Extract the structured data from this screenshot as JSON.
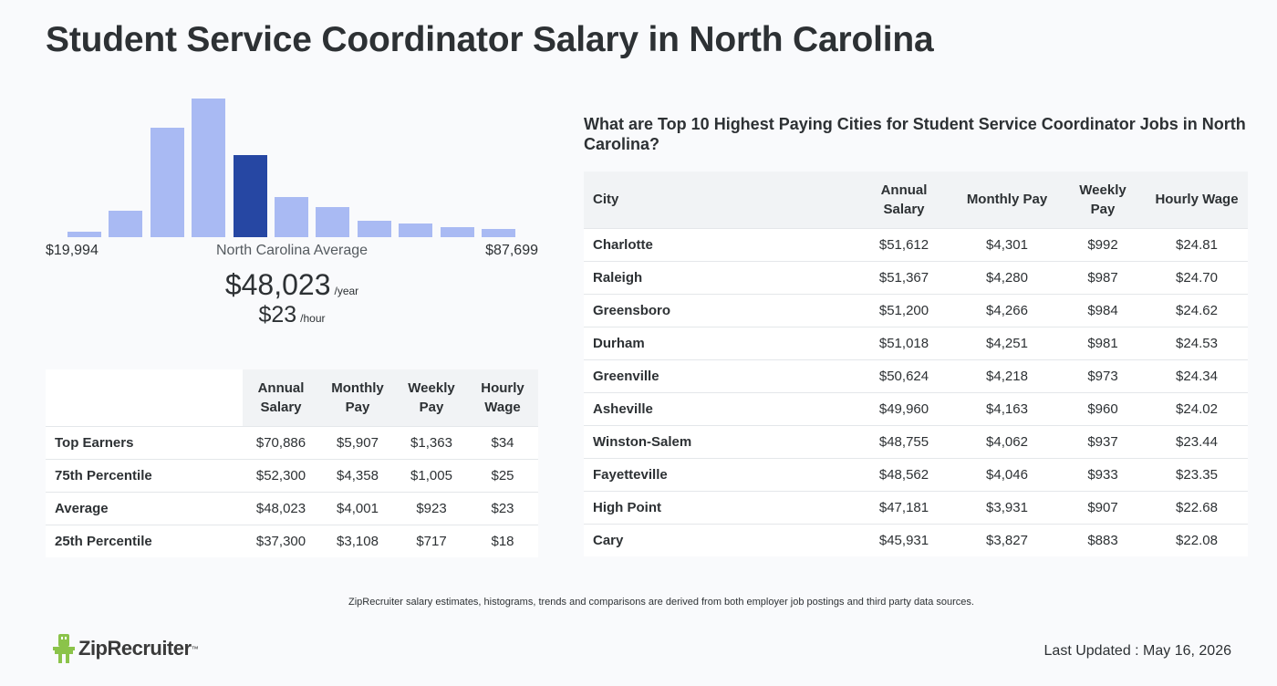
{
  "title": "Student Service Coordinator Salary in North Carolina",
  "histogram": {
    "min_label": "$19,994",
    "max_label": "$87,699",
    "avg_label": "North Carolina Average",
    "bars": [
      0.04,
      0.19,
      0.79,
      1.0,
      0.59,
      0.29,
      0.22,
      0.12,
      0.1,
      0.07,
      0.06
    ],
    "active_index": 4,
    "bar_color": "#a9baf3",
    "active_color": "#2647a3"
  },
  "average": {
    "annual": "$48,023",
    "annual_unit": "/year",
    "hourly": "$23",
    "hourly_unit": "/hour"
  },
  "percentile_table": {
    "headers": [
      "",
      "Annual Salary",
      "Monthly Pay",
      "Weekly Pay",
      "Hourly Wage"
    ],
    "rows": [
      [
        "Top Earners",
        "$70,886",
        "$5,907",
        "$1,363",
        "$34"
      ],
      [
        "75th Percentile",
        "$52,300",
        "$4,358",
        "$1,005",
        "$25"
      ],
      [
        "Average",
        "$48,023",
        "$4,001",
        "$923",
        "$23"
      ],
      [
        "25th Percentile",
        "$37,300",
        "$3,108",
        "$717",
        "$18"
      ]
    ]
  },
  "city_section": {
    "heading": "What are Top 10 Highest Paying Cities for Student Service Coordinator Jobs in North Carolina?",
    "headers": [
      "City",
      "Annual Salary",
      "Monthly Pay",
      "Weekly Pay",
      "Hourly Wage"
    ],
    "rows": [
      [
        "Charlotte",
        "$51,612",
        "$4,301",
        "$992",
        "$24.81"
      ],
      [
        "Raleigh",
        "$51,367",
        "$4,280",
        "$987",
        "$24.70"
      ],
      [
        "Greensboro",
        "$51,200",
        "$4,266",
        "$984",
        "$24.62"
      ],
      [
        "Durham",
        "$51,018",
        "$4,251",
        "$981",
        "$24.53"
      ],
      [
        "Greenville",
        "$50,624",
        "$4,218",
        "$973",
        "$24.34"
      ],
      [
        "Asheville",
        "$49,960",
        "$4,163",
        "$960",
        "$24.02"
      ],
      [
        "Winston-Salem",
        "$48,755",
        "$4,062",
        "$937",
        "$23.44"
      ],
      [
        "Fayetteville",
        "$48,562",
        "$4,046",
        "$933",
        "$23.35"
      ],
      [
        "High Point",
        "$47,181",
        "$3,931",
        "$907",
        "$22.68"
      ],
      [
        "Cary",
        "$45,931",
        "$3,827",
        "$883",
        "$22.08"
      ]
    ]
  },
  "footnote": "ZipRecruiter salary estimates, histograms, trends and comparisons are derived from both employer job postings and third party data sources.",
  "logo": {
    "text": "ZipRecruiter",
    "icon": "ziprecruiter-mascot-icon",
    "color": "#8bc34a"
  },
  "last_updated": "Last Updated : May 16, 2026"
}
